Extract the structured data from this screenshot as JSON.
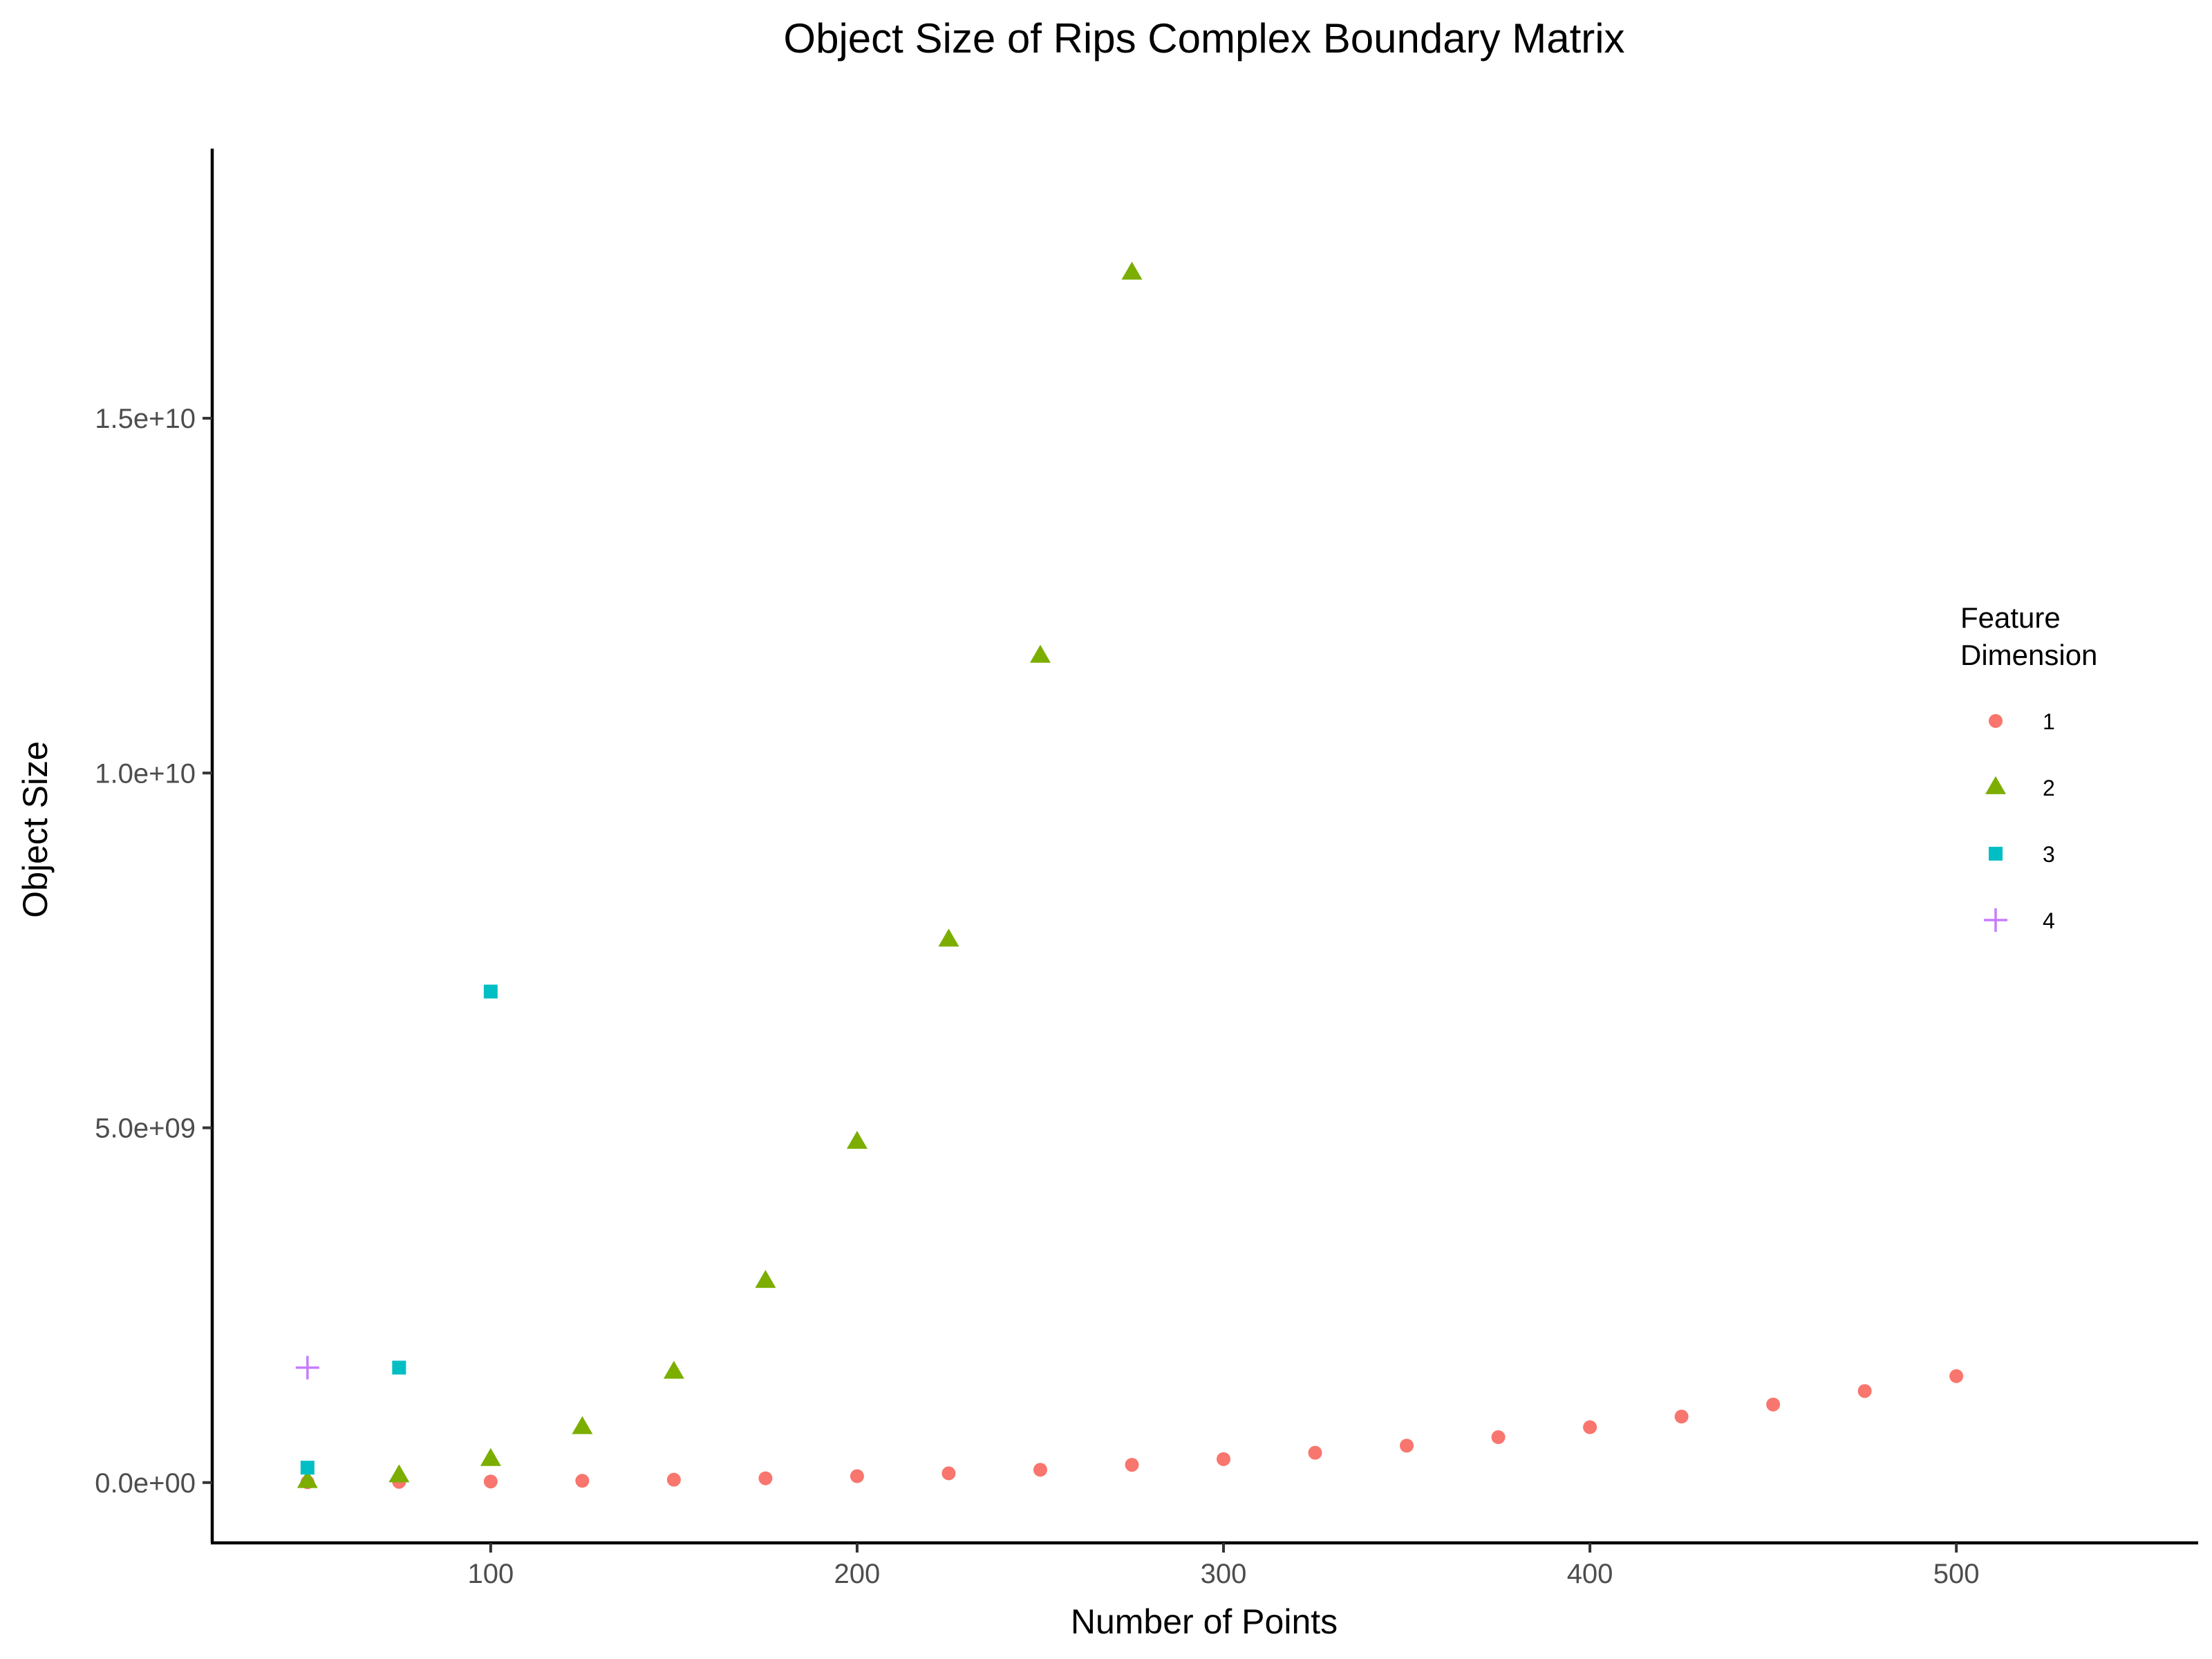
{
  "chart_data": {
    "type": "scatter",
    "title": "Object Size of Rips Complex Boundary Matrix",
    "xlabel": "Number of Points",
    "ylabel": "Object Size",
    "xlim": [
      24,
      566
    ],
    "ylim": [
      -850000000,
      18800000000
    ],
    "x_ticks": [
      100,
      200,
      300,
      400,
      500
    ],
    "x_tick_labels": [
      "100",
      "200",
      "300",
      "400",
      "500"
    ],
    "y_ticks": [
      0,
      5000000000,
      10000000000,
      15000000000
    ],
    "y_tick_labels": [
      "0.0e+00",
      "5.0e+09",
      "1.0e+10",
      "1.5e+10"
    ],
    "grid": false,
    "legend": {
      "title_lines": [
        "Feature",
        "Dimension"
      ],
      "placement": "right"
    },
    "series": [
      {
        "name": "1",
        "marker": "circle",
        "color": "#F8766D",
        "points": [
          {
            "x": 50,
            "y": 5000000
          },
          {
            "x": 75,
            "y": 10000000
          },
          {
            "x": 100,
            "y": 15000000
          },
          {
            "x": 125,
            "y": 25000000
          },
          {
            "x": 150,
            "y": 40000000
          },
          {
            "x": 175,
            "y": 60000000
          },
          {
            "x": 200,
            "y": 90000000
          },
          {
            "x": 225,
            "y": 130000000
          },
          {
            "x": 250,
            "y": 180000000
          },
          {
            "x": 275,
            "y": 250000000
          },
          {
            "x": 300,
            "y": 330000000
          },
          {
            "x": 325,
            "y": 420000000
          },
          {
            "x": 350,
            "y": 520000000
          },
          {
            "x": 375,
            "y": 640000000
          },
          {
            "x": 400,
            "y": 780000000
          },
          {
            "x": 425,
            "y": 930000000
          },
          {
            "x": 450,
            "y": 1100000000
          },
          {
            "x": 475,
            "y": 1290000000
          },
          {
            "x": 500,
            "y": 1500000000
          }
        ]
      },
      {
        "name": "2",
        "marker": "triangle",
        "color": "#7CAE00",
        "points": [
          {
            "x": 50,
            "y": 20000000
          },
          {
            "x": 75,
            "y": 100000000
          },
          {
            "x": 100,
            "y": 330000000
          },
          {
            "x": 125,
            "y": 780000000
          },
          {
            "x": 150,
            "y": 1560000000
          },
          {
            "x": 175,
            "y": 2840000000
          },
          {
            "x": 200,
            "y": 4800000000
          },
          {
            "x": 225,
            "y": 7650000000
          },
          {
            "x": 250,
            "y": 11650000000
          },
          {
            "x": 275,
            "y": 17050000000
          }
        ]
      },
      {
        "name": "3",
        "marker": "square",
        "color": "#00BFC4",
        "points": [
          {
            "x": 50,
            "y": 210000000
          },
          {
            "x": 75,
            "y": 1620000000
          },
          {
            "x": 100,
            "y": 6920000000
          }
        ]
      },
      {
        "name": "4",
        "marker": "plus",
        "color": "#C77CFF",
        "points": [
          {
            "x": 50,
            "y": 1620000000
          }
        ]
      }
    ]
  }
}
